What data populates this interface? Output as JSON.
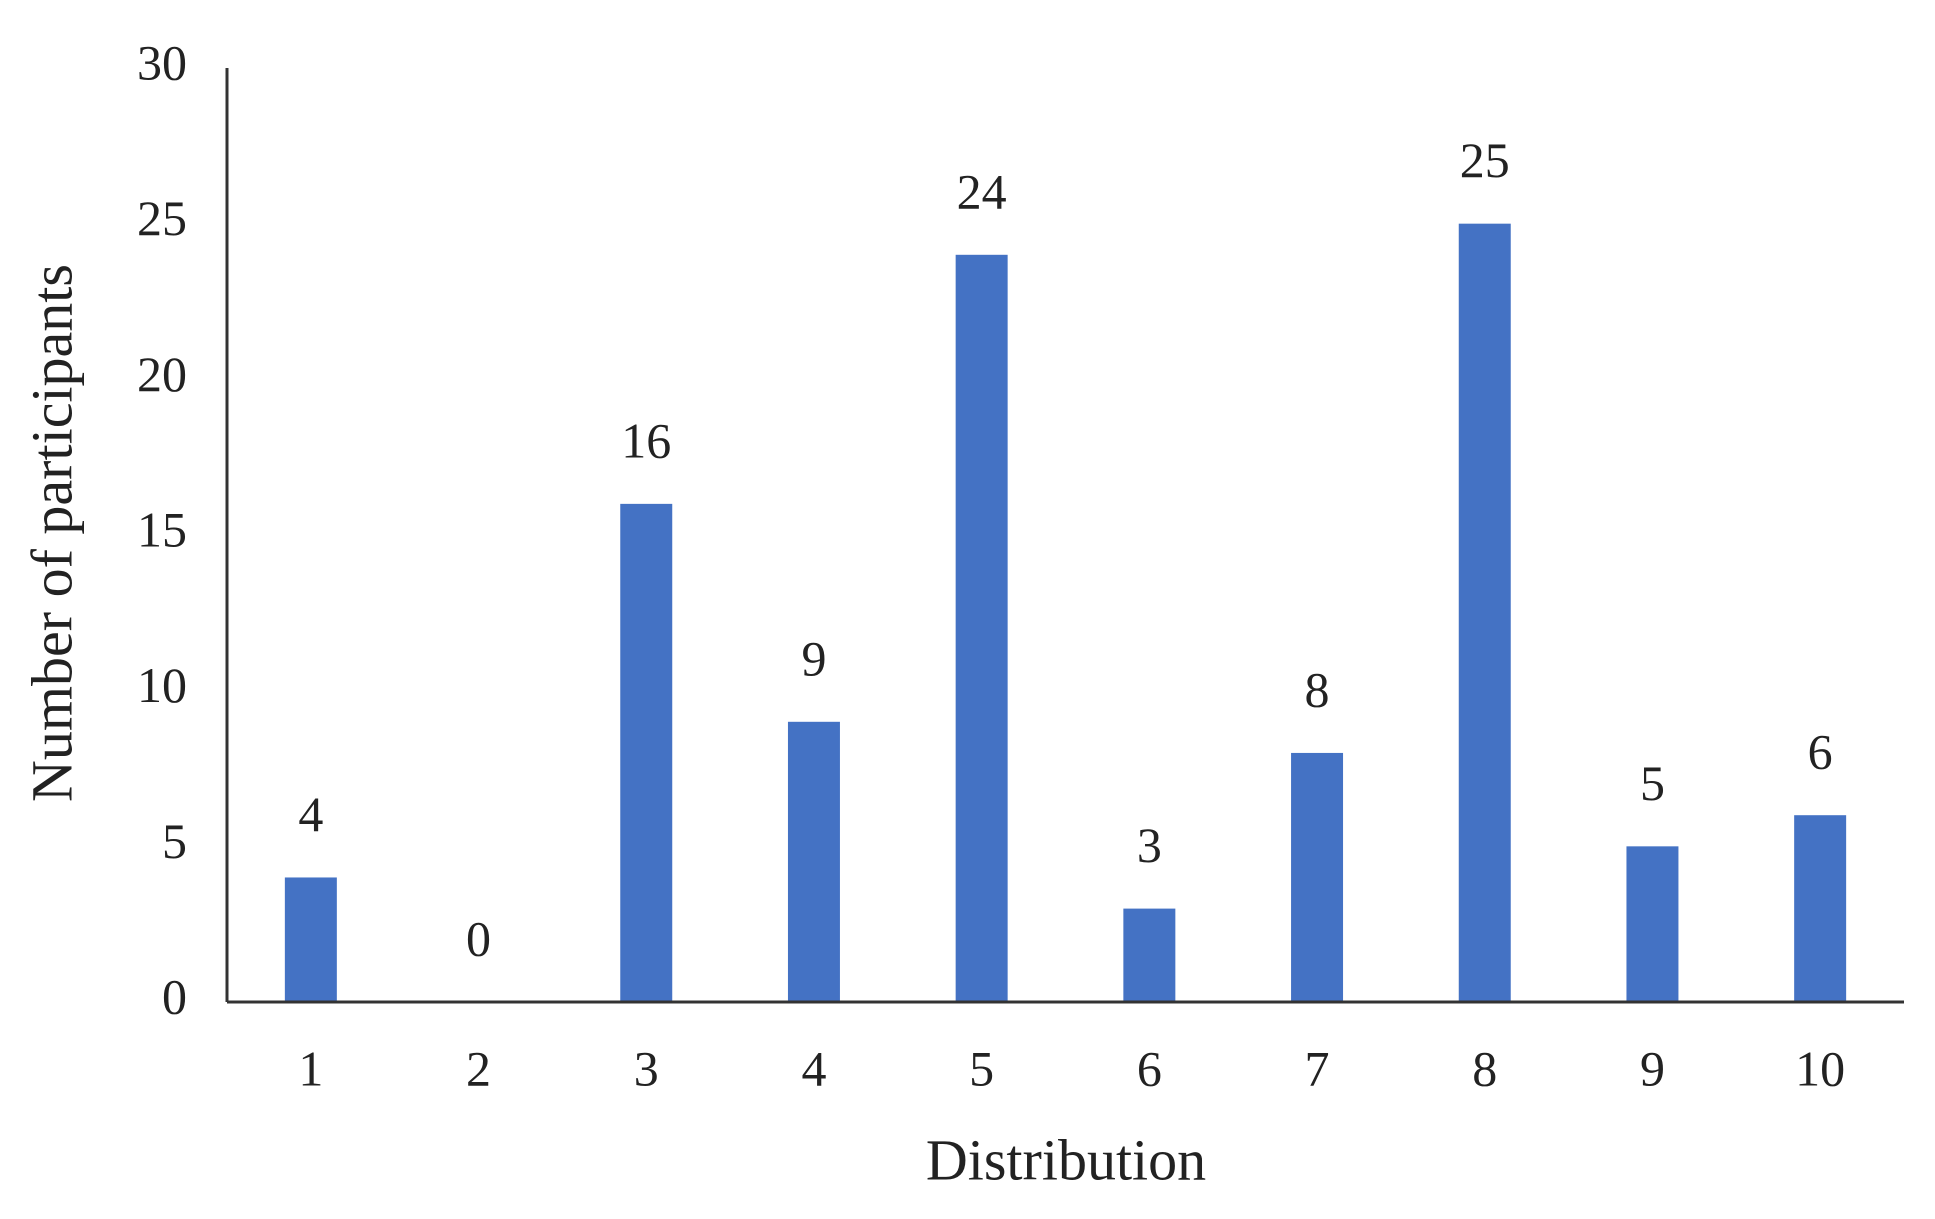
{
  "chart_data": {
    "type": "bar",
    "x_label": "Distribution",
    "y_label": "Number of participants",
    "categories": [
      "1",
      "2",
      "3",
      "4",
      "5",
      "6",
      "7",
      "8",
      "9",
      "10"
    ],
    "values": [
      4,
      0,
      16,
      9,
      24,
      3,
      8,
      25,
      5,
      6
    ],
    "color": "#4472c4",
    "ylim": [
      0,
      30
    ],
    "yticks": [
      0,
      5,
      10,
      15,
      20,
      25,
      30
    ],
    "grid": false,
    "data_labels": true
  }
}
